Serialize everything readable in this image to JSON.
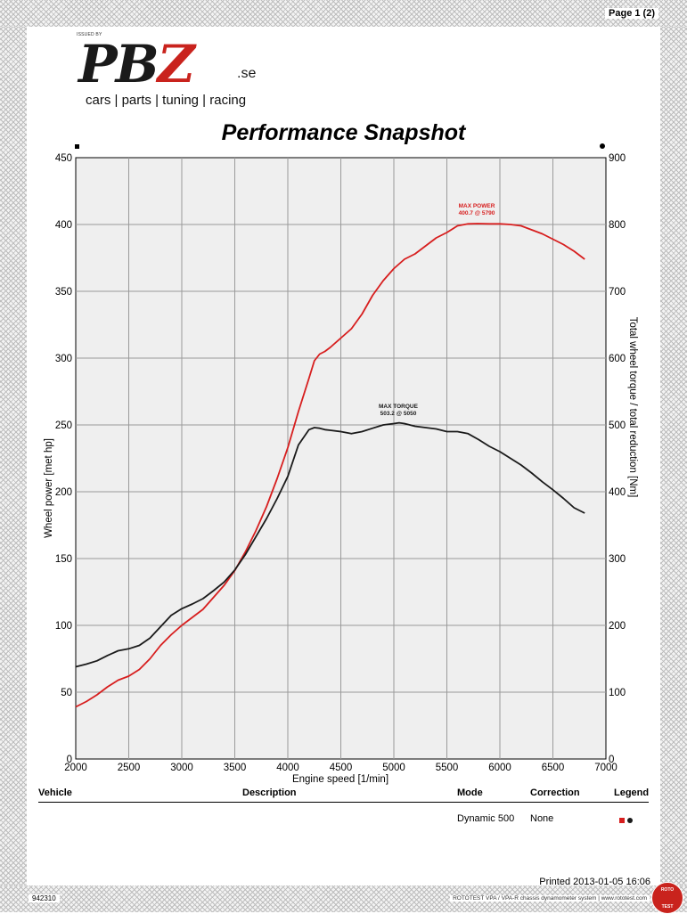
{
  "page": {
    "label": "Page 1 (2)"
  },
  "logo": {
    "tag": "ISSUED BY",
    "main_a": "PB",
    "main_b": "Z",
    "suffix": ".se",
    "slogan": "cars | parts | tuning | racing"
  },
  "chart_data": {
    "type": "line",
    "title": "Performance Snapshot",
    "xlabel": "Engine speed [1/min]",
    "ylabel_left": "Wheel power [met hp]",
    "ylabel_right": "Total wheel torque / total reduction [Nm]",
    "xlim": [
      2000,
      7000
    ],
    "ylim_left": [
      0,
      450
    ],
    "ylim_right": [
      0,
      900
    ],
    "x_ticks": [
      2000,
      2500,
      3000,
      3500,
      4000,
      4500,
      5000,
      5500,
      6000,
      6500,
      7000
    ],
    "y_ticks_left": [
      0,
      50,
      100,
      150,
      200,
      250,
      300,
      350,
      400,
      450
    ],
    "y_ticks_right": [
      0,
      100,
      200,
      300,
      400,
      500,
      600,
      700,
      800,
      900
    ],
    "grid": true,
    "series": [
      {
        "name": "Wheel power",
        "axis": "left",
        "color": "#d71e1e",
        "x": [
          2000,
          2100,
          2200,
          2300,
          2400,
          2500,
          2600,
          2700,
          2800,
          2900,
          3000,
          3100,
          3200,
          3300,
          3400,
          3500,
          3600,
          3700,
          3800,
          3900,
          4000,
          4100,
          4200,
          4250,
          4300,
          4350,
          4400,
          4500,
          4600,
          4700,
          4800,
          4900,
          5000,
          5100,
          5200,
          5300,
          5400,
          5500,
          5600,
          5700,
          5790,
          5900,
          6000,
          6100,
          6200,
          6300,
          6400,
          6500,
          6600,
          6700,
          6800
        ],
        "y": [
          39,
          43,
          48,
          54,
          59,
          62,
          67,
          75,
          85,
          93,
          100,
          106,
          112,
          121,
          130,
          141,
          155,
          171,
          189,
          210,
          233,
          260,
          285,
          298,
          303,
          305,
          308,
          315,
          322,
          333,
          347,
          358,
          367,
          374,
          378,
          384,
          390,
          394,
          399,
          400.5,
          400.7,
          400.5,
          400.5,
          400,
          399,
          396,
          393,
          389,
          385,
          380,
          374
        ]
      },
      {
        "name": "Total wheel torque",
        "axis": "right",
        "color": "#1a1a1a",
        "x": [
          2000,
          2100,
          2200,
          2300,
          2400,
          2500,
          2600,
          2700,
          2800,
          2900,
          3000,
          3100,
          3200,
          3300,
          3400,
          3500,
          3600,
          3700,
          3800,
          3900,
          4000,
          4100,
          4200,
          4250,
          4300,
          4350,
          4400,
          4500,
          4600,
          4700,
          4800,
          4900,
          5000,
          5050,
          5100,
          5200,
          5300,
          5400,
          5500,
          5600,
          5700,
          5800,
          5900,
          6000,
          6100,
          6200,
          6300,
          6400,
          6500,
          6600,
          6700,
          6800
        ],
        "y": [
          138,
          142,
          147,
          155,
          162,
          165,
          170,
          181,
          198,
          215,
          225,
          232,
          240,
          252,
          265,
          283,
          306,
          333,
          360,
          390,
          423,
          470,
          493,
          496,
          495,
          493,
          492,
          490,
          487,
          490,
          495,
          500,
          502,
          503.2,
          502,
          498,
          496,
          494,
          490,
          490,
          487,
          478,
          468,
          460,
          450,
          440,
          428,
          415,
          403,
          390,
          376,
          368
        ]
      }
    ],
    "annotations": [
      {
        "label": "MAX POWER",
        "value": "400.7 @ 5790",
        "color": "#d71e1e"
      },
      {
        "label": "MAX TORQUE",
        "value": "503.2 @ 5050",
        "color": "#1a1a1a"
      }
    ]
  },
  "table": {
    "headers": {
      "vehicle": "Vehicle",
      "description": "Description",
      "mode": "Mode",
      "correction": "Correction",
      "legend": "Legend"
    },
    "row": {
      "vehicle": "",
      "description": "",
      "mode": "Dynamic 500",
      "correction": "None"
    },
    "legend_colors": [
      "#d71e1e",
      "#1a1a1a"
    ]
  },
  "footer": {
    "printed": "Printed 2013-01-05 16:06",
    "id": "942310",
    "system": "ROTOTEST VPA / VPA-R chassis dynamometer system | www.rototest.com",
    "badge_top": "ROTO",
    "badge_bottom": "TEST"
  }
}
